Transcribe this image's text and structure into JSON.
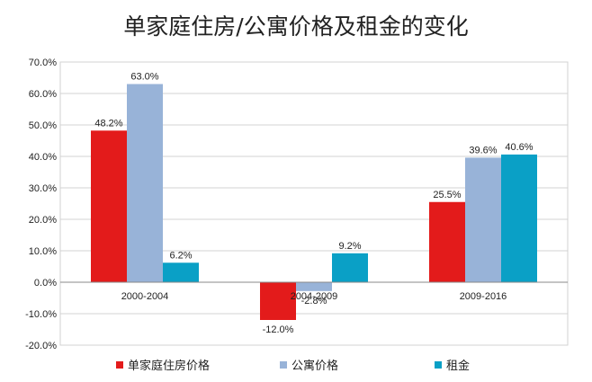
{
  "chart_data": {
    "type": "bar",
    "title": "单家庭住房/公寓价格及租金的变化",
    "categories": [
      "2000-2004",
      "2004-2009",
      "2009-2016"
    ],
    "series": [
      {
        "name": "单家庭住房价格",
        "color": "#e31b1b",
        "values": [
          48.2,
          -12.0,
          25.5
        ],
        "labels": [
          "48.2%",
          "-12.0%",
          "25.5%"
        ]
      },
      {
        "name": "公寓价格",
        "color": "#98b3d8",
        "values": [
          63.0,
          -2.8,
          39.6
        ],
        "labels": [
          "63.0%",
          "-2.8%",
          "39.6%"
        ]
      },
      {
        "name": "租金",
        "color": "#0aa0c6",
        "values": [
          6.2,
          9.2,
          40.6
        ],
        "labels": [
          "6.2%",
          "9.2%",
          "40.6%"
        ]
      }
    ],
    "ylim": [
      -20,
      70
    ],
    "yticks": [
      70,
      60,
      50,
      40,
      30,
      20,
      10,
      0,
      -10,
      -20
    ],
    "ytick_labels": [
      "70.0%",
      "60.0%",
      "50.0%",
      "40.0%",
      "30.0%",
      "20.0%",
      "10.0%",
      "0.0%",
      "-10.0%",
      "-20.0%"
    ],
    "grid": true,
    "legend_position": "bottom"
  }
}
